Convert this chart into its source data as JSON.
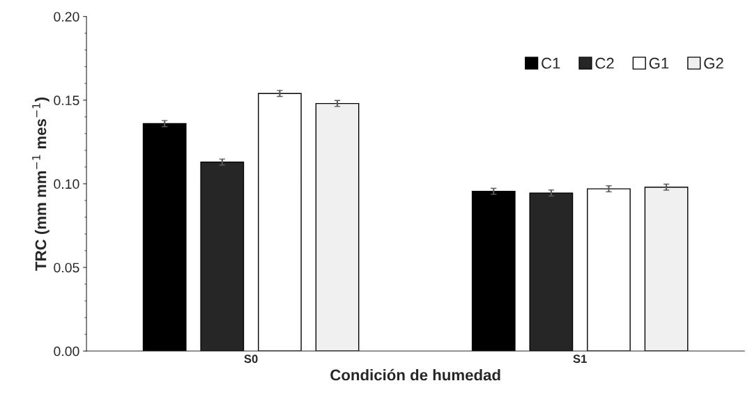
{
  "chart_data": {
    "type": "bar",
    "xlabel": "Condición de humedad",
    "ylabel": "TRC (mm mm$^{−1}$ mes$^{−1}$)",
    "categories": [
      "S0",
      "S1"
    ],
    "series": [
      {
        "name": "C1",
        "color": "#000000",
        "values": [
          0.136,
          0.0955
        ],
        "errors": [
          0.0018,
          0.0018
        ]
      },
      {
        "name": "C2",
        "color": "#262626",
        "values": [
          0.113,
          0.0945
        ],
        "errors": [
          0.0018,
          0.0018
        ]
      },
      {
        "name": "G1",
        "color": "#ffffff",
        "values": [
          0.154,
          0.097
        ],
        "errors": [
          0.0018,
          0.0018
        ]
      },
      {
        "name": "G2",
        "color": "#f0f0f0",
        "values": [
          0.148,
          0.098
        ],
        "errors": [
          0.0018,
          0.0018
        ]
      }
    ],
    "ylim": [
      0,
      0.2
    ],
    "yticks": [
      {
        "value": 0,
        "label": "0.00"
      },
      {
        "value": 0.05,
        "label": "0.05"
      },
      {
        "value": 0.1,
        "label": "0.10"
      },
      {
        "value": 0.15,
        "label": "0.15"
      },
      {
        "value": 0.2,
        "label": "0.20"
      }
    ],
    "grid": false,
    "legend": "top right"
  }
}
